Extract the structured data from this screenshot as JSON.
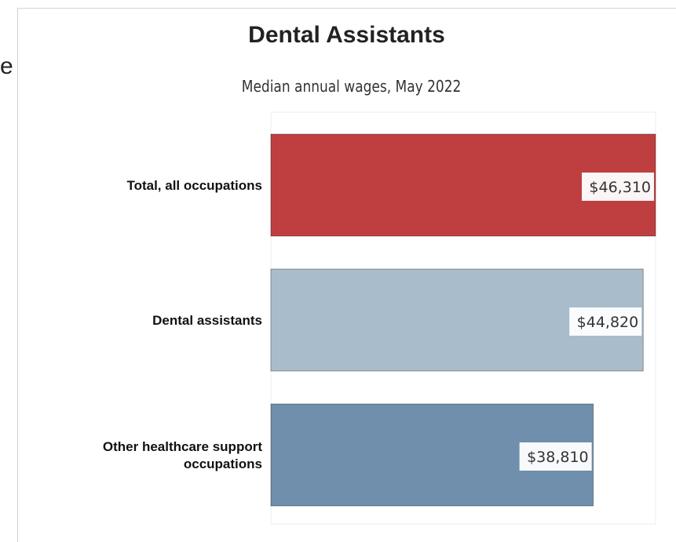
{
  "edge_fragment": "e",
  "chart_data": {
    "type": "bar",
    "orientation": "horizontal",
    "title": "Dental Assistants",
    "subtitle": "Median annual wages, May 2022",
    "categories": [
      "Total, all occupations",
      "Dental assistants",
      "Other healthcare support occupations"
    ],
    "category_lines": [
      [
        "Total, all occupations"
      ],
      [
        "Dental assistants"
      ],
      [
        "Other healthcare support",
        "occupations"
      ]
    ],
    "values": [
      46310,
      44820,
      38810
    ],
    "value_labels": [
      "$46,310",
      "$44,820",
      "$38,810"
    ],
    "colors": [
      "#bf3f41",
      "#a9bccb",
      "#6f8fac"
    ],
    "xlim": [
      0,
      46310
    ],
    "grid": false,
    "legend": "none"
  }
}
